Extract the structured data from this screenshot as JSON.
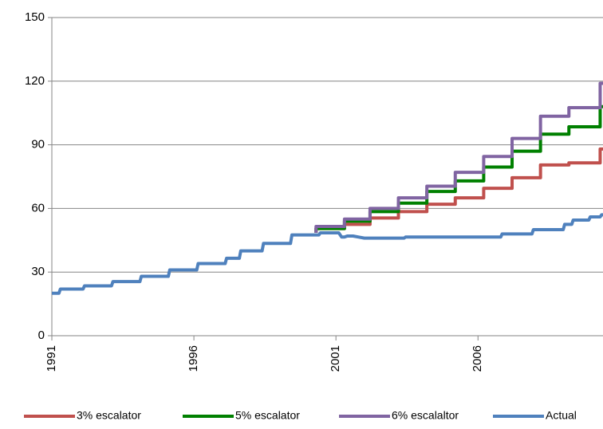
{
  "chart_data": {
    "type": "line",
    "xlim": [
      1991,
      2010.4
    ],
    "xticks": [
      1991,
      1996,
      2001,
      2006
    ],
    "ylim": [
      0,
      150
    ],
    "yticks": [
      0,
      30,
      60,
      90,
      120,
      150
    ],
    "grid": true,
    "legend": "bottom",
    "line_width": 4,
    "series": [
      {
        "name": "3% escalator",
        "color": "#c0504d",
        "x": [
          2000.3,
          2000.3,
          2001.3,
          2001.3,
          2002.2,
          2002.2,
          2003.2,
          2003.2,
          2004.2,
          2004.2,
          2005.2,
          2005.2,
          2006.2,
          2006.2,
          2007.2,
          2007.2,
          2008.2,
          2008.2,
          2009.2,
          2009.2,
          2010.3,
          2010.3,
          2010.4
        ],
        "values": [
          48.5,
          50.5,
          50.5,
          52.5,
          52.5,
          55.5,
          55.5,
          58.5,
          58.5,
          62,
          62,
          65,
          65,
          69.5,
          69.5,
          74.5,
          74.5,
          80.5,
          80.5,
          81.5,
          81.5,
          88,
          88
        ]
      },
      {
        "name": "5% escalator",
        "color": "#008000",
        "x": [
          2000.3,
          2000.3,
          2001.3,
          2001.3,
          2002.2,
          2002.2,
          2003.2,
          2003.2,
          2004.2,
          2004.2,
          2005.2,
          2005.2,
          2006.2,
          2006.2,
          2007.2,
          2007.2,
          2008.2,
          2008.2,
          2009.2,
          2009.2,
          2010.3,
          2010.3,
          2010.4
        ],
        "values": [
          48.5,
          50.5,
          50.5,
          54,
          54,
          58.5,
          58.5,
          62.5,
          62.5,
          68,
          68,
          73,
          73,
          79.5,
          79.5,
          87,
          87,
          95,
          95,
          98.5,
          98.5,
          108,
          108
        ]
      },
      {
        "name": "6% escalaltor",
        "color": "#8064a2",
        "x": [
          2000.3,
          2000.3,
          2001.3,
          2001.3,
          2002.2,
          2002.2,
          2003.2,
          2003.2,
          2004.2,
          2004.2,
          2005.2,
          2005.2,
          2006.2,
          2006.2,
          2007.2,
          2007.2,
          2008.2,
          2008.2,
          2009.2,
          2009.2,
          2010.3,
          2010.3,
          2010.4
        ],
        "values": [
          48.5,
          51.5,
          51.5,
          55,
          55,
          60,
          60,
          65,
          65,
          70.5,
          70.5,
          77,
          77,
          84.5,
          84.5,
          93,
          93,
          103.5,
          103.5,
          107.5,
          107.5,
          119,
          119
        ]
      },
      {
        "name": "Actual",
        "color": "#4f81bd",
        "x": [
          1991,
          1991.25,
          1991.3,
          1992.1,
          1992.15,
          1993.1,
          1993.15,
          1994.1,
          1994.15,
          1995.1,
          1995.15,
          1996.1,
          1996.15,
          1997.1,
          1997.15,
          1997.6,
          1997.65,
          1998.4,
          1998.45,
          1999.4,
          1999.45,
          2000.4,
          2000.45,
          2001.1,
          2001.2,
          2001.3,
          2001.4,
          2001.6,
          2001.8,
          2002.0,
          2003.4,
          2003.45,
          2006.8,
          2006.85,
          2007.9,
          2007.95,
          2009,
          2009.05,
          2009.3,
          2009.35,
          2009.9,
          2009.95,
          2010.3,
          2010.35,
          2010.4
        ],
        "values": [
          20,
          20,
          22,
          22,
          23.5,
          23.5,
          25.5,
          25.5,
          28,
          28,
          31,
          31,
          34,
          34,
          36.5,
          36.5,
          40,
          40,
          43.5,
          43.5,
          47.5,
          47.5,
          48.5,
          48.5,
          46.5,
          46.5,
          47,
          47,
          46.5,
          46,
          46,
          46.5,
          46.5,
          48,
          48,
          50,
          50,
          52.5,
          52.5,
          54.5,
          54.5,
          56,
          56,
          57,
          57
        ]
      }
    ]
  }
}
